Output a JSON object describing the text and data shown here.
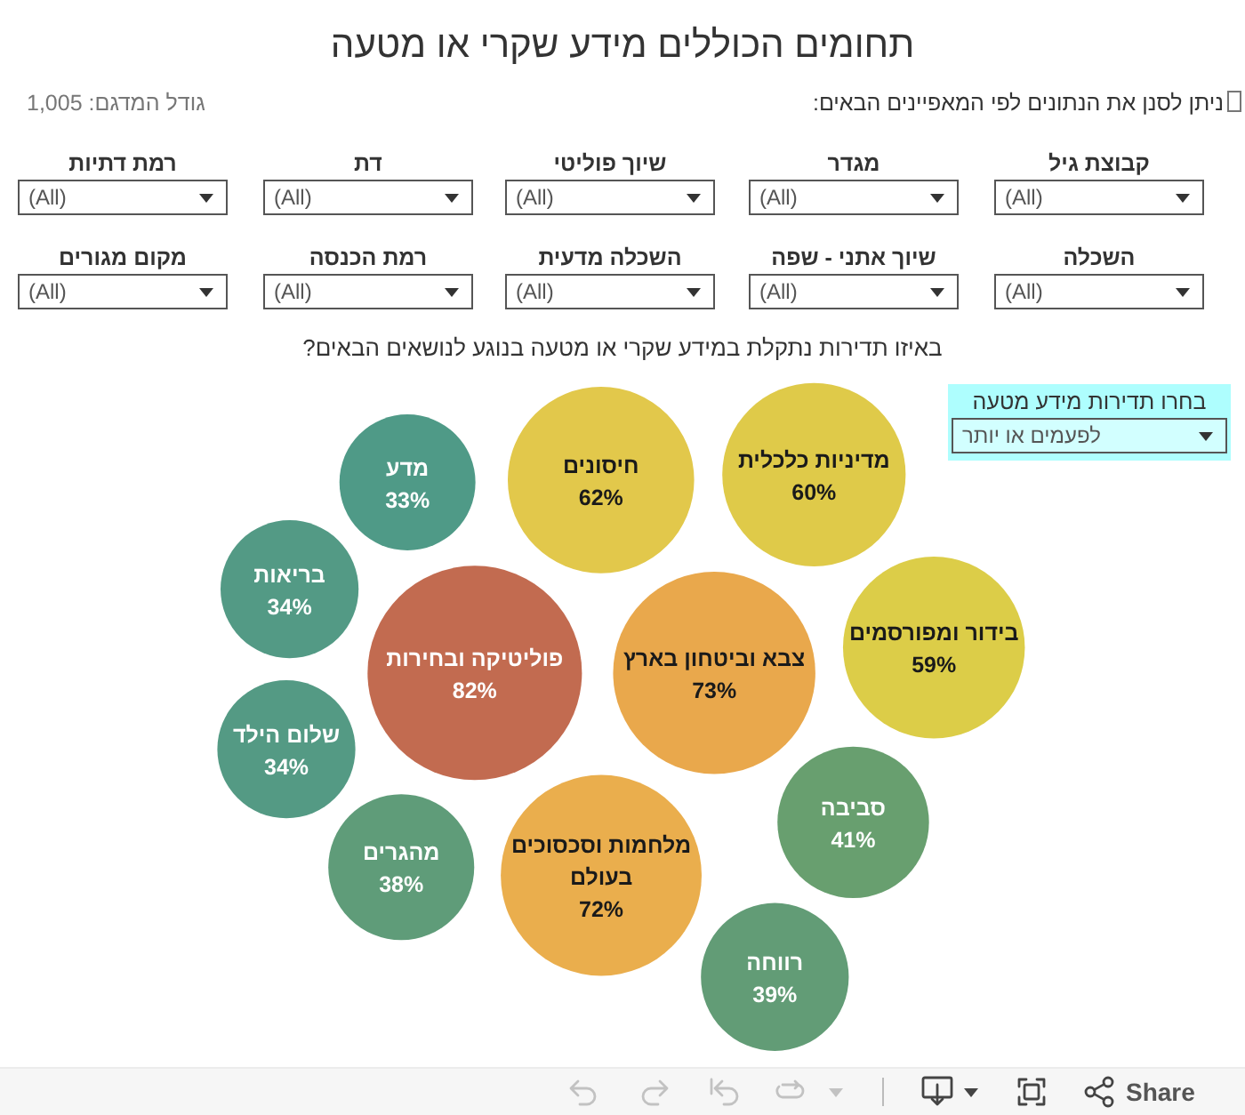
{
  "chart_data": {
    "type": "other",
    "title": "תחומים הכוללים מידע שקרי או מטעה",
    "subtitle": "באיזו תדירות נתקלת במידע שקרי או מטעה בנוגע לנושאים הבאים?",
    "categories": [
      "פוליטיקה ובחירות",
      "צבא וביטחון בארץ",
      "מלחמות וסכסוכים בעולם",
      "חיסונים",
      "מדיניות כלכלית",
      "בידור ומפורסמים",
      "סביבה",
      "רווחה",
      "מהגרים",
      "שלום הילד",
      "בריאות",
      "מדע"
    ],
    "values": [
      82,
      73,
      72,
      62,
      60,
      59,
      41,
      39,
      38,
      34,
      34,
      33
    ],
    "value_labels": [
      "82%",
      "73%",
      "72%",
      "62%",
      "60%",
      "59%",
      "41%",
      "39%",
      "38%",
      "34%",
      "34%",
      "33%"
    ],
    "colors": [
      "#c26b50",
      "#e9a84c",
      "#eaae4d",
      "#e2c84b",
      "#dfca49",
      "#dccd48",
      "#689f6f",
      "#629c76",
      "#5f9c79",
      "#549a84",
      "#539a85",
      "#4f9a87"
    ],
    "annotations": [
      "גודל המדגם: 1,005",
      "ניתן לסנן את הנתונים לפי המאפיינים הבאים:",
      "קבוצת גיל",
      "(All)",
      "מגדר",
      "(All)",
      "שיוך פוליטי",
      "(All)",
      "דת",
      "(All)",
      "רמת דתיות",
      "(All)",
      "השכלה",
      "(All)",
      "שיוך אתני - שפה",
      "(All)",
      "השכלה מדעית",
      "(All)",
      "רמת הכנסה",
      "(All)",
      "מקום מגורים",
      "(All)",
      "בחרו תדירות מידע מטעה",
      "לפעמים או יותר",
      "Share"
    ]
  }
}
